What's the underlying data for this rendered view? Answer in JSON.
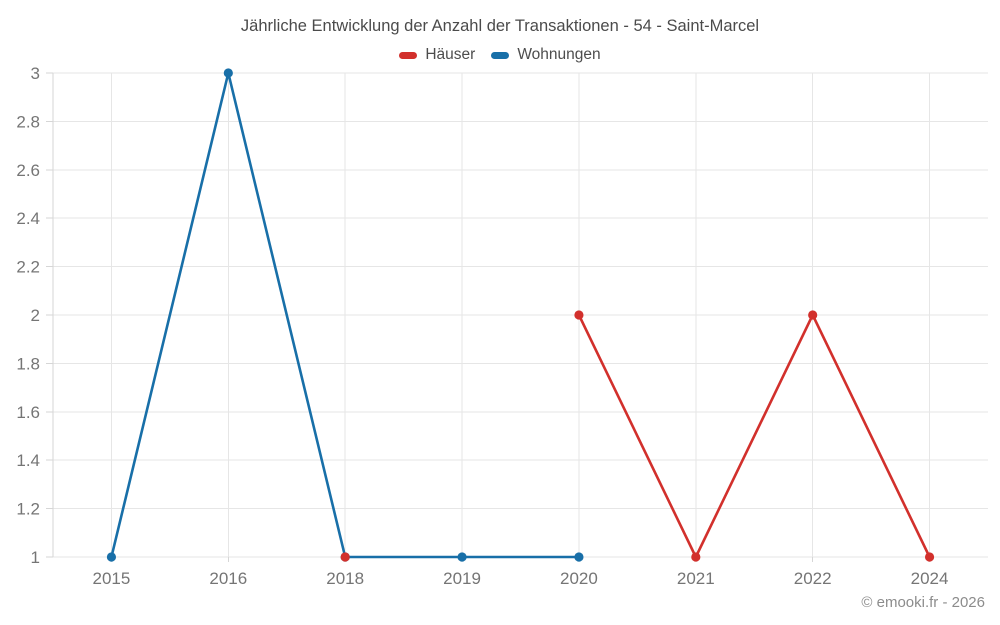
{
  "credit": "© emooki.fr - 2026",
  "chart_data": {
    "type": "line",
    "title": "Jährliche Entwicklung der Anzahl der Transaktionen - 54 - Saint-Marcel",
    "xlabel": "",
    "ylabel": "",
    "categories": [
      "2015",
      "2016",
      "2018",
      "2019",
      "2020",
      "2021",
      "2022",
      "2024"
    ],
    "series": [
      {
        "name": "Häuser",
        "color": "#d2302c",
        "values": [
          null,
          null,
          1,
          null,
          2,
          1,
          2,
          1
        ]
      },
      {
        "name": "Wohnungen",
        "color": "#186fa8",
        "values": [
          1,
          3,
          1,
          1,
          1,
          null,
          null,
          null
        ]
      }
    ],
    "y_ticks": [
      "1",
      "1.2",
      "1.4",
      "1.6",
      "1.8",
      "2",
      "2.2",
      "2.4",
      "2.6",
      "2.8",
      "3"
    ],
    "ylim": [
      1,
      3
    ],
    "grid": true,
    "legend_position": "top"
  }
}
